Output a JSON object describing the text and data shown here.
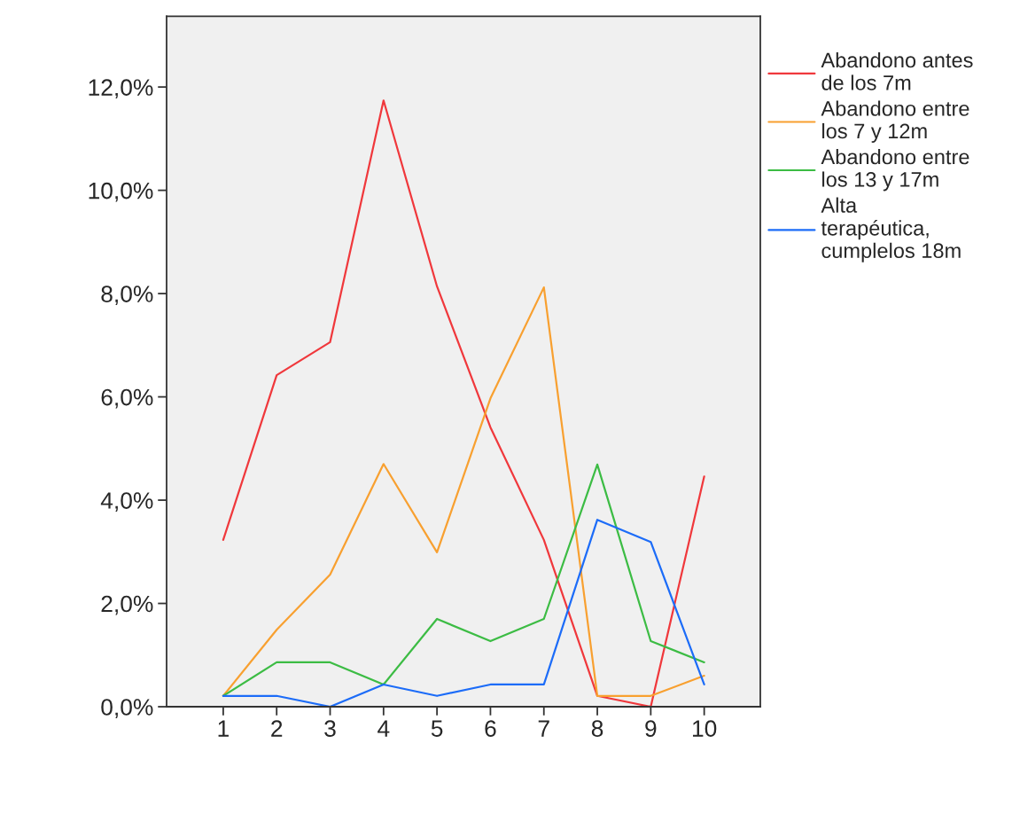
{
  "chart_data": {
    "type": "line",
    "categories": [
      "1",
      "2",
      "3",
      "4",
      "5",
      "6",
      "7",
      "8",
      "9",
      "10"
    ],
    "series": [
      {
        "name": "Abandono antes de los 7m",
        "color": "#f0383c",
        "values": [
          3.23,
          6.42,
          7.06,
          11.74,
          8.14,
          5.41,
          3.23,
          0.21,
          0,
          4.46
        ]
      },
      {
        "name": "Abandono entre los 7 y 12m",
        "color": "#f8a030",
        "values": [
          0.21,
          1.49,
          2.56,
          4.7,
          2.99,
          5.97,
          8.12,
          0.21,
          0.21,
          0.6
        ]
      },
      {
        "name": "Abandono entre los 13 y 17m",
        "color": "#3cbc44",
        "values": [
          0.21,
          0.86,
          0.86,
          0.43,
          1.7,
          1.27,
          1.7,
          4.69,
          1.27,
          0.86
        ]
      },
      {
        "name": "Alta terapéutica, cumplelos 18m",
        "color": "#1c6cf8",
        "values": [
          0.21,
          0.21,
          0,
          0.43,
          0.21,
          0.43,
          0.43,
          3.62,
          3.19,
          0.43
        ]
      }
    ],
    "ylim": [
      0,
      13.37
    ],
    "yticks": [
      {
        "value": 0,
        "label": "0,0%"
      },
      {
        "value": 2,
        "label": "2,0%"
      },
      {
        "value": 4,
        "label": "4,0%"
      },
      {
        "value": 6,
        "label": "6,0%"
      },
      {
        "value": 8,
        "label": "8,0%"
      },
      {
        "value": 10,
        "label": "10,0%"
      },
      {
        "value": 12,
        "label": "12,0%"
      }
    ],
    "grid": false,
    "legend": "right",
    "marker": "none",
    "line_style": "solid"
  }
}
